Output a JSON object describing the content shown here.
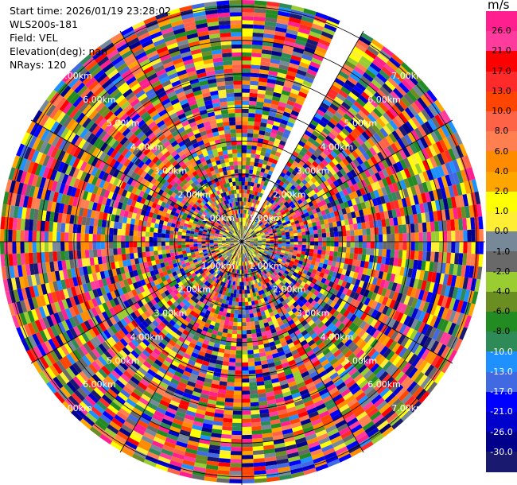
{
  "header": {
    "start_time": "Start time: 2026/01/19 23:28:02",
    "instrument": "WLS200s-181",
    "field": "Field: VEL",
    "elevation": "Elevation(deg): nan",
    "nrays": "NRays: 120"
  },
  "colorbar": {
    "unit": "m/s",
    "ticks": [
      "26.0",
      "21.0",
      "17.0",
      "13.0",
      "10.0",
      "8.0",
      "6.0",
      "4.0",
      "2.0",
      "1.0",
      "0.0",
      "-1.0",
      "-2.0",
      "-4.0",
      "-6.0",
      "-8.0",
      "-10.0",
      "-13.0",
      "-17.0",
      "-21.0",
      "-26.0",
      "-30.0"
    ],
    "colors": [
      "#ff1f8f",
      "#ff3c9e",
      "#ff0000",
      "#ff2a2a",
      "#ff4500",
      "#ff6347",
      "#ff7f50",
      "#ff8c00",
      "#ffa500",
      "#ffff00",
      "#ffee33",
      "#778899",
      "#696969",
      "#9acd32",
      "#6b8e23",
      "#228b22",
      "#2e8b57",
      "#1e90ff",
      "#4169e1",
      "#0000ff",
      "#0000cd",
      "#00008b",
      "#191970"
    ]
  },
  "chart_data": {
    "type": "heatmap",
    "projection": "polar",
    "field": "VEL",
    "nrays": 120,
    "gap_azimuth_deg": [
      24,
      30
    ],
    "range_rings_km": [
      1.0,
      2.0,
      3.0,
      4.0,
      5.0,
      6.0,
      7.0
    ],
    "ring_labels": [
      "1.00km",
      "2.00km",
      "3.00km",
      "4.00km",
      "5.00km",
      "6.00km",
      "7.00km"
    ],
    "label_bearings_deg": [
      315,
      45,
      135,
      225
    ],
    "max_range_km": 7.2,
    "spokes_deg": [
      0,
      30,
      60,
      90,
      120,
      150,
      180,
      210,
      240,
      270,
      300,
      330
    ],
    "gates_per_ray": 60,
    "value_range": [
      -30,
      30
    ]
  }
}
